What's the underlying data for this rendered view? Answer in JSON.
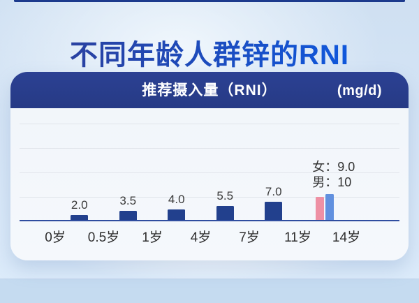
{
  "page": {
    "title": "不同年龄人群锌的RNI"
  },
  "panel": {
    "header_label": "推荐摄入量（RNI）",
    "unit_label": "(mg/d)"
  },
  "chart_data": {
    "type": "bar",
    "title": "不同年龄人群锌的RNI",
    "ylabel": "推荐摄入量（RNI）",
    "unit": "mg/d",
    "x_tick_labels": [
      "0岁",
      "0.5岁",
      "1岁",
      "4岁",
      "7岁",
      "11岁",
      "14岁"
    ],
    "bars": [
      {
        "label": "2.0",
        "value": 2.0
      },
      {
        "label": "3.5",
        "value": 3.5
      },
      {
        "label": "4.0",
        "value": 4.0
      },
      {
        "label": "5.5",
        "value": 5.5
      },
      {
        "label": "7.0",
        "value": 7.0
      }
    ],
    "grouped_bar": {
      "series": [
        {
          "name": "女",
          "value": 9.0,
          "color": "#EE90A4"
        },
        {
          "name": "男",
          "value": 10,
          "color": "#6190DF"
        }
      ],
      "annotation_lines": [
        "女：9.0",
        "男：10"
      ]
    },
    "bar_color": "#22408D",
    "axis_color": "#2F4DA0",
    "gridline_count": 4,
    "legend_position": "none",
    "grid": true
  },
  "colors": {
    "header_navy": "#283E8E",
    "title_blue": "#1A4FC9",
    "female_pink": "#EE90A4",
    "male_blue": "#6190DF"
  }
}
